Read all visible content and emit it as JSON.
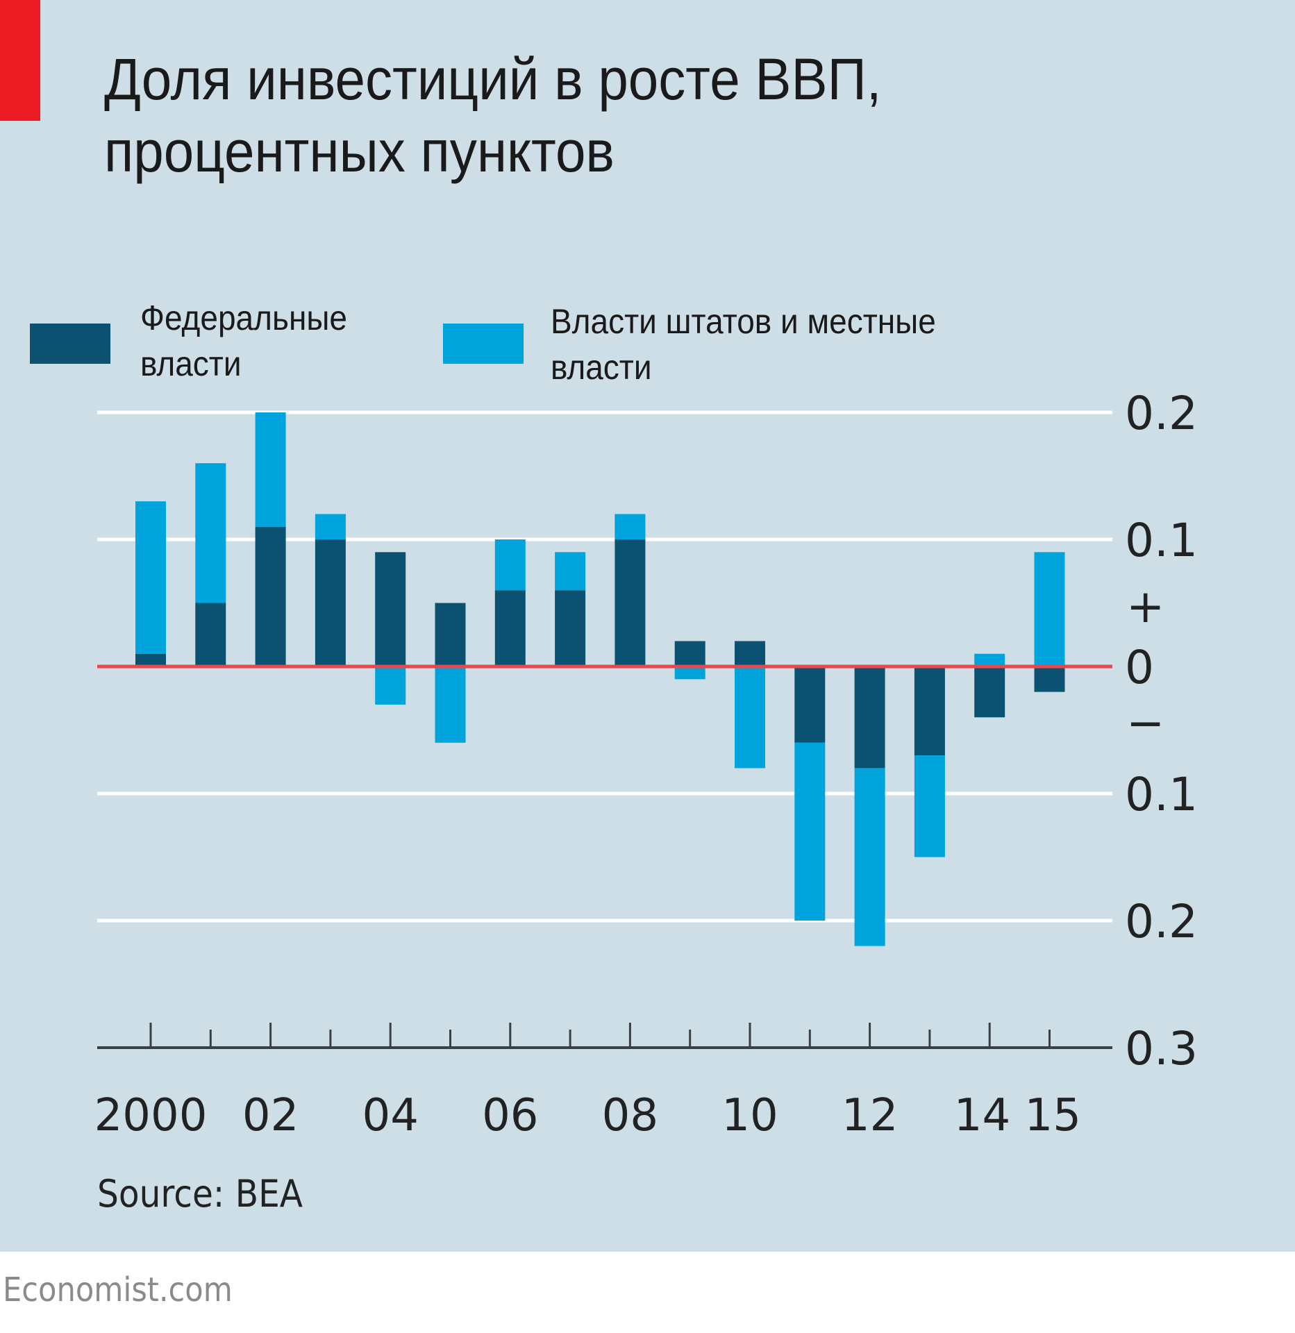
{
  "colors": {
    "background": "#cddee6",
    "accent": "#ed1c24",
    "federal": "#0b5272",
    "state_local": "#00a4dc",
    "zero_line": "#e8474c",
    "gridline": "#ffffff",
    "axis": "#3a3f44"
  },
  "header": {
    "title_line1": "Доля инвестиций в росте ВВП,",
    "title_line2": "процентных пунктов"
  },
  "legend": {
    "federal_line1": "Федеральные",
    "federal_line2": "власти",
    "state_line1": "Власти штатов и местные",
    "state_line2": "власти"
  },
  "footer": {
    "source": "Source: BEA",
    "brand": "Economist.com"
  },
  "chart_data": {
    "type": "bar",
    "stacked": true,
    "title": "Доля инвестиций в росте ВВП, процентных пунктов",
    "xlabel": "",
    "ylabel": "",
    "categories": [
      "2000",
      "2001",
      "2002",
      "2003",
      "2004",
      "2005",
      "2006",
      "2007",
      "2008",
      "2009",
      "2010",
      "2011",
      "2012",
      "2013",
      "2014",
      "2015"
    ],
    "x_tick_labels": [
      {
        "year": "2000",
        "label": "2000"
      },
      {
        "year": "2002",
        "label": "02"
      },
      {
        "year": "2004",
        "label": "04"
      },
      {
        "year": "2006",
        "label": "06"
      },
      {
        "year": "2008",
        "label": "08"
      },
      {
        "year": "2010",
        "label": "10"
      },
      {
        "year": "2012",
        "label": "12"
      },
      {
        "year": "2014",
        "label": "14"
      },
      {
        "year": "2015",
        "label": "15"
      }
    ],
    "series": [
      {
        "name": "Федеральные власти",
        "color_key": "federal",
        "values": [
          0.01,
          0.05,
          0.11,
          0.1,
          0.09,
          0.05,
          0.06,
          0.06,
          0.1,
          0.02,
          0.02,
          -0.06,
          -0.08,
          -0.07,
          -0.04,
          -0.02
        ]
      },
      {
        "name": "Власти штатов и местные власти",
        "color_key": "state_local",
        "values": [
          0.12,
          0.11,
          0.09,
          0.02,
          -0.03,
          -0.06,
          0.04,
          0.03,
          0.02,
          -0.01,
          -0.08,
          -0.14,
          -0.14,
          -0.08,
          0.01,
          0.09
        ]
      }
    ],
    "ylim": [
      -0.3,
      0.2
    ],
    "y_ticks": [
      {
        "value": 0.2,
        "label": "0.2"
      },
      {
        "value": 0.1,
        "label": "0.1"
      },
      {
        "value": 0,
        "label": "0"
      },
      {
        "value": -0.1,
        "label": "0.1"
      },
      {
        "value": -0.2,
        "label": "0.2"
      },
      {
        "value": -0.3,
        "label": "0.3"
      }
    ],
    "sign_markers": {
      "plus": "+",
      "minus": "−"
    },
    "grid": true,
    "y_axis_side": "right",
    "legend_position": "top-left"
  }
}
